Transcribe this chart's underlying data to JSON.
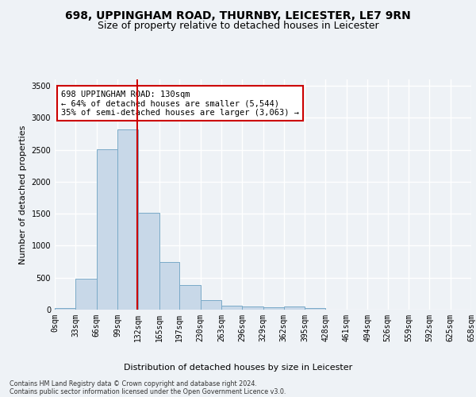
{
  "title_line1": "698, UPPINGHAM ROAD, THURNBY, LEICESTER, LE7 9RN",
  "title_line2": "Size of property relative to detached houses in Leicester",
  "xlabel": "Distribution of detached houses by size in Leicester",
  "ylabel": "Number of detached properties",
  "bar_color": "#c8d8e8",
  "bar_edge_color": "#7aaac8",
  "bin_edges": [
    0,
    33,
    66,
    99,
    132,
    165,
    197,
    230,
    263,
    296,
    329,
    362,
    395,
    428,
    461,
    494,
    526,
    559,
    592,
    625,
    658
  ],
  "bar_heights": [
    25,
    480,
    2510,
    2820,
    1510,
    745,
    390,
    155,
    65,
    50,
    40,
    55,
    30,
    0,
    0,
    0,
    0,
    0,
    0,
    0
  ],
  "tick_labels": [
    "0sqm",
    "33sqm",
    "66sqm",
    "99sqm",
    "132sqm",
    "165sqm",
    "197sqm",
    "230sqm",
    "263sqm",
    "296sqm",
    "329sqm",
    "362sqm",
    "395sqm",
    "428sqm",
    "461sqm",
    "494sqm",
    "526sqm",
    "559sqm",
    "592sqm",
    "625sqm",
    "658sqm"
  ],
  "ylim": [
    0,
    3600
  ],
  "yticks": [
    0,
    500,
    1000,
    1500,
    2000,
    2500,
    3000,
    3500
  ],
  "property_size": 130,
  "vline_color": "#cc0000",
  "annotation_text": "698 UPPINGHAM ROAD: 130sqm\n← 64% of detached houses are smaller (5,544)\n35% of semi-detached houses are larger (3,063) →",
  "annotation_box_color": "#ffffff",
  "annotation_box_edge": "#cc0000",
  "footer_line1": "Contains HM Land Registry data © Crown copyright and database right 2024.",
  "footer_line2": "Contains public sector information licensed under the Open Government Licence v3.0.",
  "background_color": "#eef2f6",
  "grid_color": "#ffffff",
  "title_fontsize": 10,
  "subtitle_fontsize": 9,
  "axis_label_fontsize": 8,
  "tick_fontsize": 7,
  "annotation_fontsize": 7.5,
  "footer_fontsize": 5.8
}
